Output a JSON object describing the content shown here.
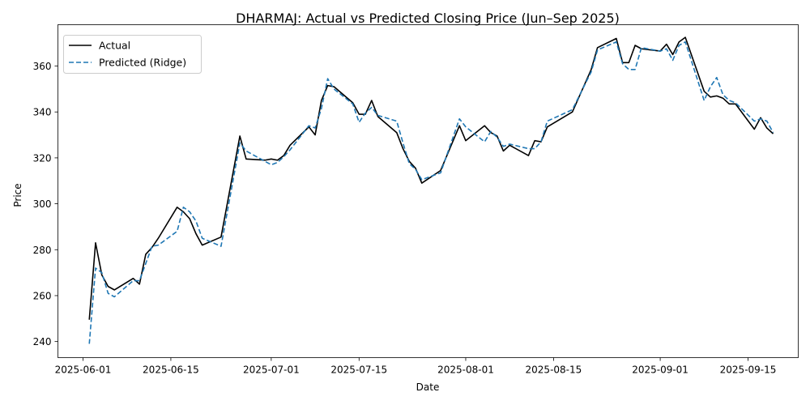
{
  "chart_data": {
    "type": "line",
    "title": "DHARMAJ: Actual vs Predicted Closing Price (Jun–Sep 2025)",
    "xlabel": "Date",
    "ylabel": "Price",
    "xlim": [
      "2025-05-28",
      "2025-09-23"
    ],
    "ylim": [
      233,
      378
    ],
    "x_ticks": [
      "2025-06-01",
      "2025-06-15",
      "2025-07-01",
      "2025-07-15",
      "2025-08-01",
      "2025-08-15",
      "2025-09-01",
      "2025-09-15"
    ],
    "y_ticks": [
      240,
      260,
      280,
      300,
      320,
      340,
      360
    ],
    "grid": false,
    "legend_position": "top-left",
    "series": [
      {
        "name": "Actual",
        "color": "#000000",
        "style": "solid",
        "points": [
          [
            "2025-06-02",
            249.5
          ],
          [
            "2025-06-03",
            283.0
          ],
          [
            "2025-06-04",
            269.0
          ],
          [
            "2025-06-05",
            264.0
          ],
          [
            "2025-06-06",
            262.5
          ],
          [
            "2025-06-09",
            267.5
          ],
          [
            "2025-06-10",
            265.0
          ],
          [
            "2025-06-11",
            278.0
          ],
          [
            "2025-06-12",
            281.0
          ],
          [
            "2025-06-13",
            285.0
          ],
          [
            "2025-06-16",
            298.5
          ],
          [
            "2025-06-17",
            296.5
          ],
          [
            "2025-06-18",
            293.5
          ],
          [
            "2025-06-19",
            287.0
          ],
          [
            "2025-06-20",
            282.0
          ],
          [
            "2025-06-23",
            285.5
          ],
          [
            "2025-06-26",
            329.5
          ],
          [
            "2025-06-27",
            319.5
          ],
          [
            "2025-06-30",
            319.0
          ],
          [
            "2025-07-01",
            319.5
          ],
          [
            "2025-07-02",
            319.0
          ],
          [
            "2025-07-03",
            321.0
          ],
          [
            "2025-07-04",
            325.5
          ],
          [
            "2025-07-07",
            333.5
          ],
          [
            "2025-07-08",
            330.0
          ],
          [
            "2025-07-09",
            345.0
          ],
          [
            "2025-07-10",
            351.5
          ],
          [
            "2025-07-11",
            351.0
          ],
          [
            "2025-07-14",
            344.0
          ],
          [
            "2025-07-15",
            339.0
          ],
          [
            "2025-07-16",
            339.0
          ],
          [
            "2025-07-17",
            345.0
          ],
          [
            "2025-07-18",
            338.0
          ],
          [
            "2025-07-21",
            331.0
          ],
          [
            "2025-07-22",
            324.0
          ],
          [
            "2025-07-23",
            318.5
          ],
          [
            "2025-07-24",
            315.5
          ],
          [
            "2025-07-25",
            309.0
          ],
          [
            "2025-07-28",
            314.5
          ],
          [
            "2025-07-31",
            334.0
          ],
          [
            "2025-08-01",
            327.5
          ],
          [
            "2025-08-04",
            334.0
          ],
          [
            "2025-08-05",
            331.0
          ],
          [
            "2025-08-06",
            329.5
          ],
          [
            "2025-08-07",
            323.0
          ],
          [
            "2025-08-08",
            325.5
          ],
          [
            "2025-08-11",
            321.0
          ],
          [
            "2025-08-12",
            327.5
          ],
          [
            "2025-08-13",
            327.0
          ],
          [
            "2025-08-14",
            333.5
          ],
          [
            "2025-08-18",
            340.0
          ],
          [
            "2025-08-21",
            358.5
          ],
          [
            "2025-08-22",
            368.0
          ],
          [
            "2025-08-25",
            372.0
          ],
          [
            "2025-08-26",
            361.5
          ],
          [
            "2025-08-27",
            361.5
          ],
          [
            "2025-08-28",
            369.0
          ],
          [
            "2025-08-29",
            367.5
          ],
          [
            "2025-09-01",
            366.5
          ],
          [
            "2025-09-02",
            369.5
          ],
          [
            "2025-09-03",
            365.0
          ],
          [
            "2025-09-04",
            370.5
          ],
          [
            "2025-09-05",
            372.5
          ],
          [
            "2025-09-08",
            349.0
          ],
          [
            "2025-09-09",
            346.5
          ],
          [
            "2025-09-10",
            347.0
          ],
          [
            "2025-09-11",
            346.0
          ],
          [
            "2025-09-12",
            343.5
          ],
          [
            "2025-09-13",
            343.5
          ],
          [
            "2025-09-16",
            332.5
          ],
          [
            "2025-09-17",
            337.5
          ],
          [
            "2025-09-18",
            333.0
          ],
          [
            "2025-09-19",
            330.5
          ]
        ]
      },
      {
        "name": "Predicted (Ridge)",
        "color": "#1f77b4",
        "style": "dashed",
        "points": [
          [
            "2025-06-02",
            239.0
          ],
          [
            "2025-06-03",
            272.0
          ],
          [
            "2025-06-04",
            270.0
          ],
          [
            "2025-06-05",
            261.0
          ],
          [
            "2025-06-06",
            259.5
          ],
          [
            "2025-06-09",
            266.5
          ],
          [
            "2025-06-10",
            266.5
          ],
          [
            "2025-06-11",
            274.0
          ],
          [
            "2025-06-12",
            281.5
          ],
          [
            "2025-06-13",
            282.0
          ],
          [
            "2025-06-16",
            288.0
          ],
          [
            "2025-06-17",
            298.5
          ],
          [
            "2025-06-18",
            296.5
          ],
          [
            "2025-06-19",
            292.5
          ],
          [
            "2025-06-20",
            285.0
          ],
          [
            "2025-06-23",
            281.5
          ],
          [
            "2025-06-26",
            326.5
          ],
          [
            "2025-06-27",
            323.0
          ],
          [
            "2025-06-30",
            318.5
          ],
          [
            "2025-07-01",
            317.0
          ],
          [
            "2025-07-02",
            318.0
          ],
          [
            "2025-07-03",
            320.5
          ],
          [
            "2025-07-04",
            323.5
          ],
          [
            "2025-07-07",
            334.0
          ],
          [
            "2025-07-08",
            333.0
          ],
          [
            "2025-07-09",
            341.5
          ],
          [
            "2025-07-10",
            354.5
          ],
          [
            "2025-07-11",
            350.0
          ],
          [
            "2025-07-14",
            343.5
          ],
          [
            "2025-07-15",
            335.5
          ],
          [
            "2025-07-16",
            339.5
          ],
          [
            "2025-07-17",
            342.0
          ],
          [
            "2025-07-18",
            338.5
          ],
          [
            "2025-07-21",
            336.0
          ],
          [
            "2025-07-22",
            326.5
          ],
          [
            "2025-07-23",
            317.5
          ],
          [
            "2025-07-24",
            315.0
          ],
          [
            "2025-07-25",
            310.5
          ],
          [
            "2025-07-28",
            313.5
          ],
          [
            "2025-07-31",
            337.0
          ],
          [
            "2025-08-01",
            333.5
          ],
          [
            "2025-08-04",
            327.0
          ],
          [
            "2025-08-05",
            331.5
          ],
          [
            "2025-08-06",
            329.0
          ],
          [
            "2025-08-07",
            325.0
          ],
          [
            "2025-08-08",
            326.0
          ],
          [
            "2025-08-11",
            324.0
          ],
          [
            "2025-08-12",
            324.0
          ],
          [
            "2025-08-13",
            327.0
          ],
          [
            "2025-08-14",
            336.0
          ],
          [
            "2025-08-18",
            341.0
          ],
          [
            "2025-08-21",
            357.5
          ],
          [
            "2025-08-22",
            367.0
          ],
          [
            "2025-08-25",
            370.5
          ],
          [
            "2025-08-26",
            361.0
          ],
          [
            "2025-08-27",
            358.5
          ],
          [
            "2025-08-28",
            358.5
          ],
          [
            "2025-08-29",
            368.0
          ],
          [
            "2025-09-01",
            366.5
          ],
          [
            "2025-09-02",
            367.5
          ],
          [
            "2025-09-03",
            362.5
          ],
          [
            "2025-09-04",
            369.0
          ],
          [
            "2025-09-05",
            370.5
          ],
          [
            "2025-09-08",
            345.0
          ],
          [
            "2025-09-09",
            351.0
          ],
          [
            "2025-09-10",
            355.0
          ],
          [
            "2025-09-11",
            347.5
          ],
          [
            "2025-09-12",
            345.0
          ],
          [
            "2025-09-13",
            344.0
          ],
          [
            "2025-09-16",
            336.0
          ],
          [
            "2025-09-17",
            337.0
          ],
          [
            "2025-09-18",
            336.0
          ],
          [
            "2025-09-19",
            331.0
          ]
        ]
      }
    ]
  }
}
